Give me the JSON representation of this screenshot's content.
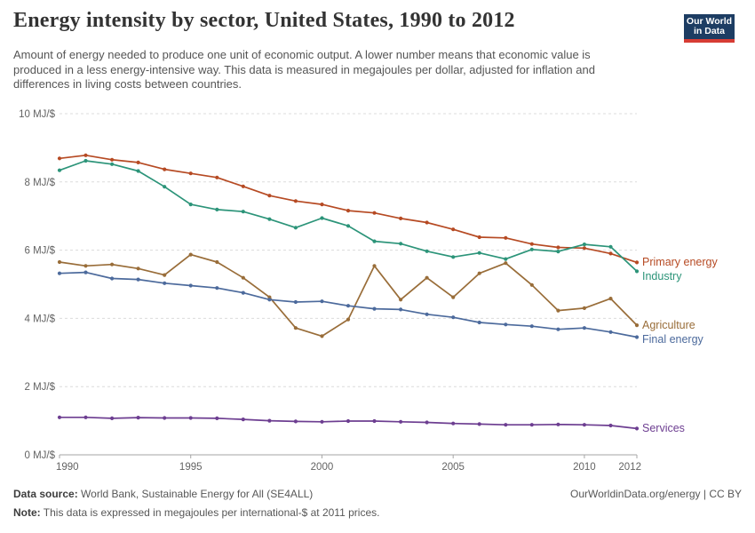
{
  "header": {
    "title": "Energy intensity by sector, United States, 1990 to 2012",
    "subtitle": "Amount of energy needed to produce one unit of economic output. A lower number means that economic value is produced in a less energy-intensive way. This data is measured in megajoules per dollar, adjusted for inflation and differences in living costs between countries.",
    "logo": {
      "line1": "Our World",
      "line2": "in Data",
      "bg_color": "#1d3d63",
      "underline_color": "#d73c34"
    }
  },
  "chart_data": {
    "type": "line",
    "title": "Energy intensity by sector, United States, 1990 to 2012",
    "unit": "MJ/$",
    "x": [
      1990,
      1991,
      1992,
      1993,
      1994,
      1995,
      1996,
      1997,
      1998,
      1999,
      2000,
      2001,
      2002,
      2003,
      2004,
      2005,
      2006,
      2007,
      2008,
      2009,
      2010,
      2011,
      2012
    ],
    "xlim": [
      1990,
      2012
    ],
    "ylim": [
      0,
      10
    ],
    "yticks": [
      0,
      2,
      4,
      6,
      8,
      10
    ],
    "ytick_labels": [
      "0 MJ/$",
      "2 MJ/$",
      "4 MJ/$",
      "6 MJ/$",
      "8 MJ/$",
      "10 MJ/$"
    ],
    "xtick_values": [
      1990,
      1995,
      2000,
      2005,
      2010,
      2012
    ],
    "xtick_labels": [
      "1990",
      "1995",
      "2000",
      "2005",
      "2010",
      "2012"
    ],
    "grid": "horizontal-dashed",
    "legend_position": "right-end-labels",
    "series": [
      {
        "name": "Primary energy",
        "color": "#b64a23",
        "values": [
          8.69,
          8.78,
          8.65,
          8.57,
          8.37,
          8.25,
          8.13,
          7.87,
          7.6,
          7.44,
          7.34,
          7.16,
          7.09,
          6.93,
          6.81,
          6.61,
          6.38,
          6.36,
          6.18,
          6.08,
          6.06,
          5.9,
          5.64
        ]
      },
      {
        "name": "Industry",
        "color": "#2c9479",
        "values": [
          8.34,
          8.62,
          8.52,
          8.32,
          7.86,
          7.34,
          7.19,
          7.13,
          6.91,
          6.66,
          6.94,
          6.71,
          6.26,
          6.19,
          5.97,
          5.8,
          5.92,
          5.74,
          6.02,
          5.96,
          6.17,
          6.1,
          5.38
        ]
      },
      {
        "name": "Agriculture",
        "color": "#996d39",
        "values": [
          5.65,
          5.54,
          5.58,
          5.46,
          5.27,
          5.87,
          5.65,
          5.19,
          4.62,
          3.72,
          3.48,
          3.97,
          5.54,
          4.55,
          5.19,
          4.62,
          5.32,
          5.62,
          4.98,
          4.23,
          4.3,
          4.58,
          3.8
        ]
      },
      {
        "name": "Final energy",
        "color": "#4c6a9c",
        "values": [
          5.32,
          5.35,
          5.17,
          5.14,
          5.03,
          4.96,
          4.89,
          4.75,
          4.55,
          4.48,
          4.5,
          4.37,
          4.28,
          4.26,
          4.12,
          4.03,
          3.88,
          3.82,
          3.77,
          3.68,
          3.72,
          3.6,
          3.45
        ]
      },
      {
        "name": "Services",
        "color": "#6d3e91",
        "values": [
          1.1,
          1.1,
          1.07,
          1.09,
          1.08,
          1.08,
          1.07,
          1.04,
          1.0,
          0.98,
          0.97,
          0.99,
          0.99,
          0.97,
          0.95,
          0.92,
          0.9,
          0.88,
          0.88,
          0.89,
          0.88,
          0.86,
          0.77
        ]
      }
    ]
  },
  "footer": {
    "source_label": "Data source:",
    "source_text": " World Bank, Sustainable Energy for All (SE4ALL)",
    "link": "OurWorldinData.org/energy | CC BY",
    "note_label": "Note:",
    "note_text": " This data is expressed in megajoules per international-$ at 2011 prices."
  }
}
